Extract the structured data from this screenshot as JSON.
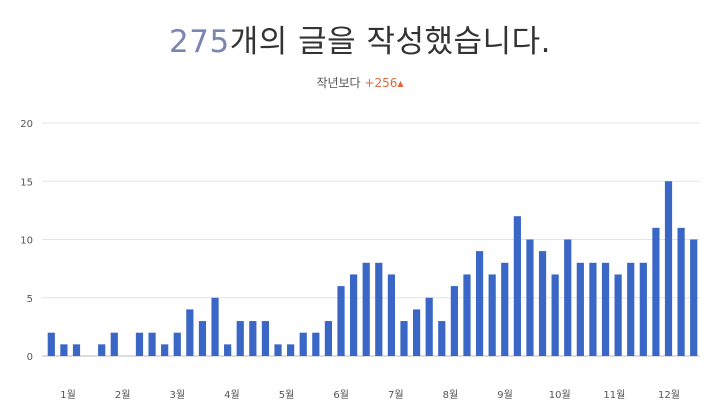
{
  "header": {
    "count": "275",
    "title_suffix": "개의 글을 작성했습니다.",
    "compare_label": "작년보다",
    "compare_value": "+256",
    "compare_arrow": "▲"
  },
  "colors": {
    "bar": "#3a66c6",
    "count": "#7b86b0",
    "delta": "#e4683b",
    "grid": "#e3e3e3"
  },
  "chart_data": {
    "type": "bar",
    "title": "",
    "xlabel": "",
    "ylabel": "",
    "ylim": [
      0,
      20
    ],
    "yticks": [
      0,
      5,
      10,
      15,
      20
    ],
    "grid": true,
    "month_labels": [
      "1월",
      "2월",
      "3월",
      "4월",
      "5월",
      "6월",
      "7월",
      "8월",
      "9월",
      "10월",
      "11월",
      "12월"
    ],
    "values": [
      2,
      1,
      1,
      0,
      1,
      2,
      0,
      2,
      2,
      1,
      2,
      4,
      3,
      5,
      1,
      3,
      3,
      3,
      1,
      1,
      2,
      2,
      3,
      6,
      7,
      8,
      8,
      7,
      3,
      4,
      5,
      3,
      6,
      7,
      9,
      7,
      8,
      12,
      10,
      9,
      7,
      10,
      8,
      8,
      8,
      7,
      8,
      8,
      11,
      15,
      11,
      10
    ]
  }
}
